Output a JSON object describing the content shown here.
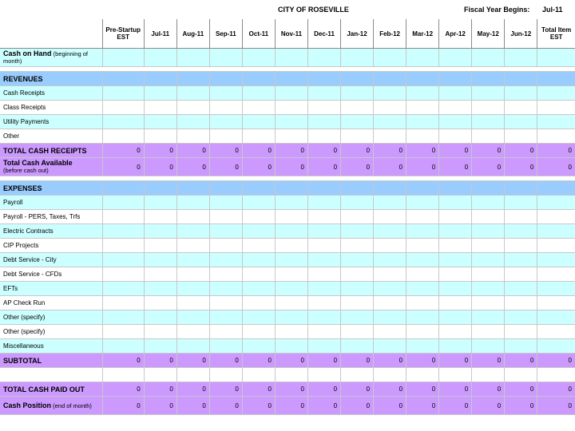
{
  "header": {
    "city": "CITY OF ROSEVILLE",
    "fiscal_label": "Fiscal Year Begins:",
    "fiscal_value": "Jul-11"
  },
  "columns": [
    "Pre-Startup EST",
    "Jul-11",
    "Aug-11",
    "Sep-11",
    "Oct-11",
    "Nov-11",
    "Dec-11",
    "Jan-12",
    "Feb-12",
    "Mar-12",
    "Apr-12",
    "May-12",
    "Jun-12",
    "Total Item EST"
  ],
  "cash_on_hand": {
    "label": "Cash on Hand",
    "note": " (beginning of month)"
  },
  "revenues": {
    "title": "REVENUES",
    "items": [
      "Cash Receipts",
      "Class Receipts",
      "Utility Payments",
      "Other"
    ],
    "total_label": "TOTAL CASH RECEIPTS",
    "total_values": [
      "0",
      "0",
      "0",
      "0",
      "0",
      "0",
      "0",
      "0",
      "0",
      "0",
      "0",
      "0",
      "0",
      "0"
    ],
    "available_label": "Total Cash Available",
    "available_note": "(before cash out)",
    "available_values": [
      "0",
      "0",
      "0",
      "0",
      "0",
      "0",
      "0",
      "0",
      "0",
      "0",
      "0",
      "0",
      "0",
      "0"
    ]
  },
  "expenses": {
    "title": "EXPENSES",
    "items": [
      "Payroll",
      "Payroll - PERS, Taxes, Trfs",
      "Electric Contracts",
      "CIP Projects",
      "Debt Service - City",
      "Debt Service - CFDs",
      "EFTs",
      "AP Check Run",
      "Other (specify)",
      "Other (specify)",
      "Miscellaneous"
    ],
    "subtotal_label": "SUBTOTAL",
    "subtotal_values": [
      "0",
      "0",
      "0",
      "0",
      "0",
      "0",
      "0",
      "0",
      "0",
      "0",
      "0",
      "0",
      "0",
      "0"
    ],
    "paid_out_label": "TOTAL CASH PAID OUT",
    "paid_out_values": [
      "0",
      "0",
      "0",
      "0",
      "0",
      "0",
      "0",
      "0",
      "0",
      "0",
      "0",
      "0",
      "0",
      "0"
    ],
    "position_label": "Cash Position",
    "position_note": " (end of month)",
    "position_values": [
      "0",
      "0",
      "0",
      "0",
      "0",
      "0",
      "0",
      "0",
      "0",
      "0",
      "0",
      "0",
      "0",
      "0"
    ]
  }
}
